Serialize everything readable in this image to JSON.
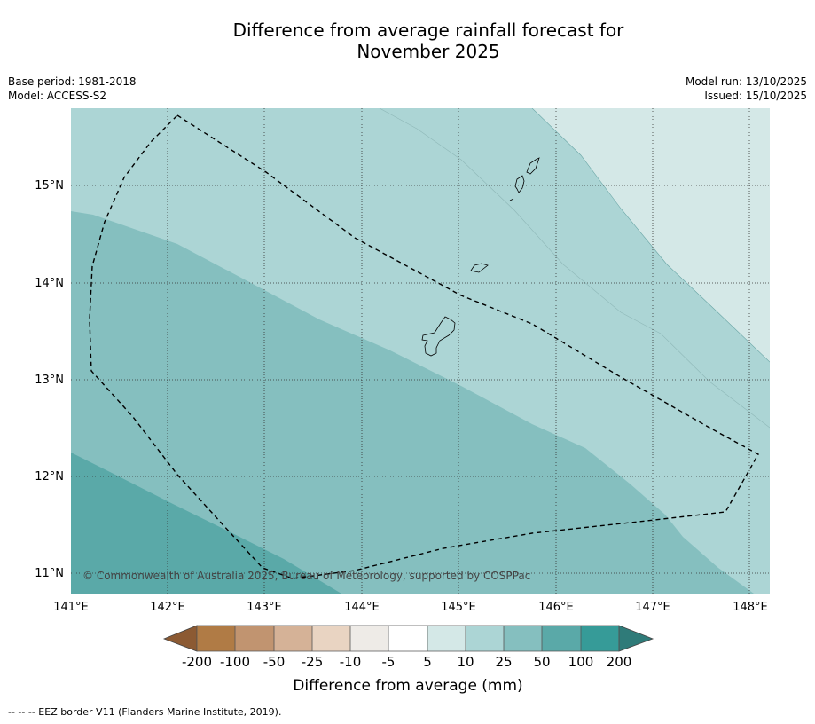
{
  "title_line1": "Difference from average rainfall forecast for",
  "title_line2": "November 2025",
  "meta": {
    "base_period": "Base period: 1981-2018",
    "model": "Model: ACCESS-S2",
    "model_run": "Model run: 13/10/2025",
    "issued": "Issued: 15/10/2025"
  },
  "map": {
    "lon_labels": [
      "141°E",
      "142°E",
      "143°E",
      "144°E",
      "145°E",
      "146°E",
      "147°E",
      "148°E"
    ],
    "lat_labels": [
      "15°N",
      "14°N",
      "13°N",
      "12°N",
      "11°N"
    ],
    "copyright": "© Commonwealth of Australia 2025, Bureau of Meteorology, supported by COSPPac",
    "extent": {
      "lon_min": 141,
      "lon_max": 148.2,
      "lat_min": 10.8,
      "lat_max": 15.8
    }
  },
  "colorbar": {
    "tick_labels": [
      "-200",
      "-100",
      "-50",
      "-25",
      "-10",
      "-5",
      "5",
      "10",
      "25",
      "50",
      "100",
      "200"
    ],
    "label": "Difference from average (mm)",
    "colors": {
      "under": "#8c5a33",
      "bins": [
        "#b07b45",
        "#c19470",
        "#d5b297",
        "#e9d4c2",
        "#eeebe7",
        "#ffffff",
        "#d4e8e7",
        "#acd5d5",
        "#85bfbf",
        "#5aa9a8",
        "#369b98"
      ],
      "over": "#2f7b79"
    }
  },
  "footer": "-- -- -- EEZ border V11 (Flanders Marine Institute, 2019)."
}
